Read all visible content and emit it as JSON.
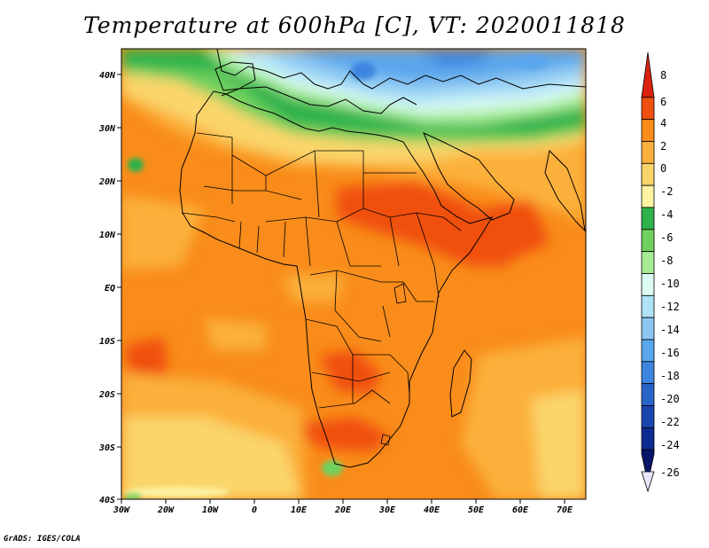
{
  "title": "Temperature at 600hPa [C], VT: 2020011818",
  "credit": "GrADS: IGES/COLA",
  "map": {
    "lon_labels": [
      "30W",
      "20W",
      "10W",
      "0",
      "10E",
      "20E",
      "30E",
      "40E",
      "50E",
      "60E",
      "70E"
    ],
    "lat_labels": [
      "40N",
      "30N",
      "20N",
      "10N",
      "EQ",
      "10S",
      "20S",
      "30S",
      "40S"
    ]
  },
  "colorbar": {
    "labels": [
      "8",
      "6",
      "4",
      "2",
      "0",
      "-2",
      "-4",
      "-6",
      "-8",
      "-10",
      "-12",
      "-14",
      "-16",
      "-18",
      "-20",
      "-22",
      "-24",
      "-26"
    ],
    "colors": [
      "#d9230f",
      "#f04f0e",
      "#f98c1a",
      "#fbb03b",
      "#fad56b",
      "#fdf3a2",
      "#2fb24b",
      "#6fd15e",
      "#a6ec93",
      "#dcfcf4",
      "#b0e2f7",
      "#8cc7f2",
      "#5aa6ec",
      "#3d85df",
      "#2964c9",
      "#1a45b0",
      "#0e2c90",
      "#0a1469"
    ]
  }
}
